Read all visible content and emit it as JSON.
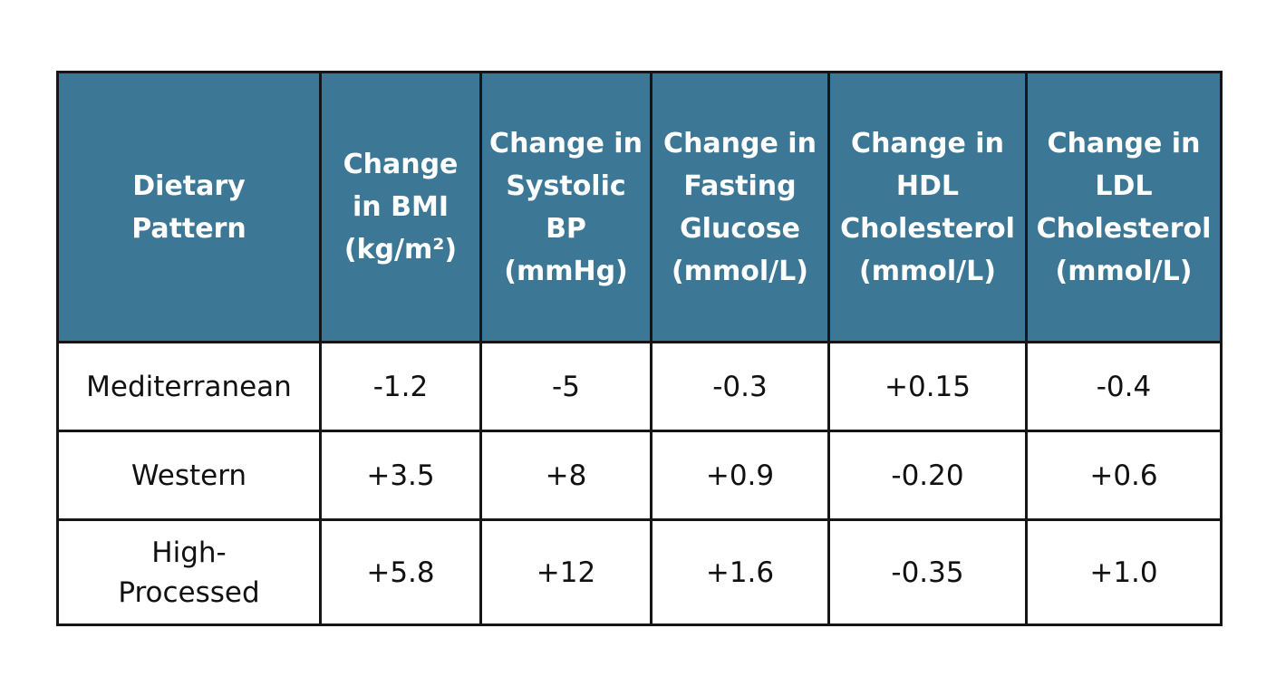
{
  "table": {
    "headers": [
      "Dietary\nPattern",
      "Change\nin BMI\n(kg/m²)",
      "Change in\nSystolic\nBP\n(mmHg)",
      "Change in\nFasting\nGlucose\n(mmol/L)",
      "Change in\nHDL\nCholesterol\n(mmol/L)",
      "Change in\nLDL\nCholesterol\n(mmol/L)"
    ],
    "rows": [
      [
        "Mediterranean",
        "-1.2",
        "-5",
        "-0.3",
        "+0.15",
        "-0.4"
      ],
      [
        "Western",
        "+3.5",
        "+8",
        "+0.9",
        "-0.20",
        "+0.6"
      ],
      [
        "High-\nProcessed",
        "+5.8",
        "+12",
        "+1.6",
        "-0.35",
        "+1.0"
      ]
    ]
  },
  "colors": {
    "header_bg": "#3c7896",
    "header_text": "#ffffff",
    "border": "#161616"
  }
}
